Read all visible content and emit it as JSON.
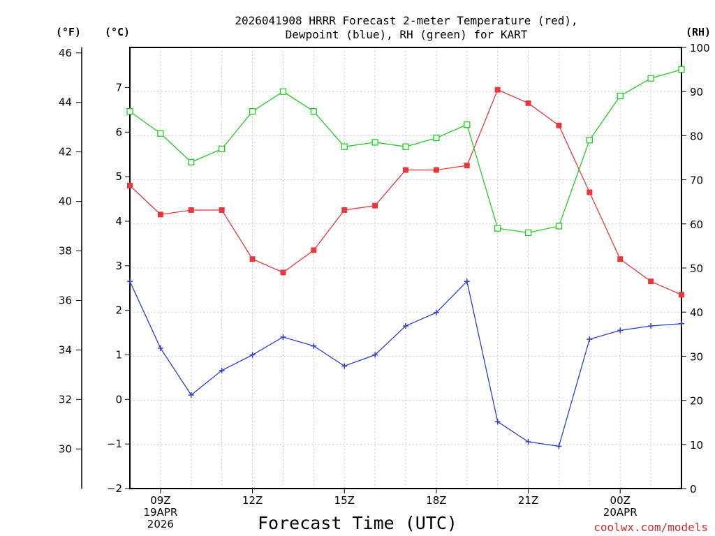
{
  "chart_data": {
    "type": "line",
    "title_line1": "2026041908 HRRR Forecast 2-meter Temperature (red),",
    "title_line2": "Dewpoint (blue), RH (green) for KART",
    "xlabel": "Forecast Time (UTC)",
    "credit": "coolwx.com/models",
    "units": {
      "fahrenheit": "(°F)",
      "celsius": "(°C)",
      "rh": "(RH)"
    },
    "hours": [
      8,
      9,
      10,
      11,
      12,
      13,
      14,
      15,
      16,
      17,
      18,
      19,
      20,
      21,
      22,
      23,
      24,
      25,
      26
    ],
    "x_ticks": [
      {
        "hour": 9,
        "lines": [
          "09Z",
          "19APR",
          "2026"
        ]
      },
      {
        "hour": 12,
        "lines": [
          "12Z"
        ]
      },
      {
        "hour": 15,
        "lines": [
          "15Z"
        ]
      },
      {
        "hour": 18,
        "lines": [
          "18Z"
        ]
      },
      {
        "hour": 21,
        "lines": [
          "21Z"
        ]
      },
      {
        "hour": 24,
        "lines": [
          "00Z",
          "20APR"
        ]
      }
    ],
    "xlim": [
      8,
      26
    ],
    "celsius_axis": {
      "ylim": [
        -2,
        7.9
      ],
      "ticks": [
        -2,
        -1,
        0,
        1,
        2,
        3,
        4,
        5,
        6,
        7
      ],
      "labels": [
        "−2",
        "−1",
        "0",
        "1",
        "2",
        "3",
        "4",
        "5",
        "6",
        "7"
      ]
    },
    "fahrenheit_axis": {
      "ticks": [
        30,
        32,
        34,
        36,
        38,
        40,
        42,
        44,
        46
      ],
      "labels": [
        "30",
        "32",
        "34",
        "36",
        "38",
        "40",
        "42",
        "44",
        "46"
      ]
    },
    "rh_axis": {
      "ylim": [
        0,
        100
      ],
      "ticks": [
        0,
        10,
        20,
        30,
        40,
        50,
        60,
        70,
        80,
        90,
        100
      ],
      "labels": [
        "0",
        "10",
        "20",
        "30",
        "40",
        "50",
        "60",
        "70",
        "80",
        "90",
        "100"
      ]
    },
    "series": [
      {
        "name": "Temperature",
        "axis": "celsius",
        "color": "#e8383d",
        "marker": "filled-square",
        "values": [
          4.8,
          4.15,
          4.25,
          4.25,
          3.15,
          2.85,
          3.35,
          4.25,
          4.35,
          5.15,
          5.15,
          5.25,
          6.95,
          6.65,
          6.15,
          4.65,
          3.15,
          2.65,
          2.35
        ]
      },
      {
        "name": "Dewpoint",
        "axis": "celsius",
        "color": "#2e3fd0",
        "marker": "plus",
        "values": [
          2.65,
          1.15,
          0.1,
          0.65,
          1.0,
          1.4,
          1.2,
          0.75,
          1.0,
          1.65,
          1.95,
          2.65,
          -0.5,
          -0.95,
          -1.05,
          1.35,
          1.55,
          1.65,
          1.7
        ]
      },
      {
        "name": "RH",
        "axis": "rh",
        "color": "#22cc22",
        "marker": "open-square",
        "values": [
          85.5,
          80.5,
          74,
          77,
          85.5,
          90,
          85.5,
          77.5,
          78.5,
          77.5,
          79.5,
          82.5,
          59,
          58,
          59.5,
          79,
          89,
          93,
          95
        ]
      }
    ]
  }
}
